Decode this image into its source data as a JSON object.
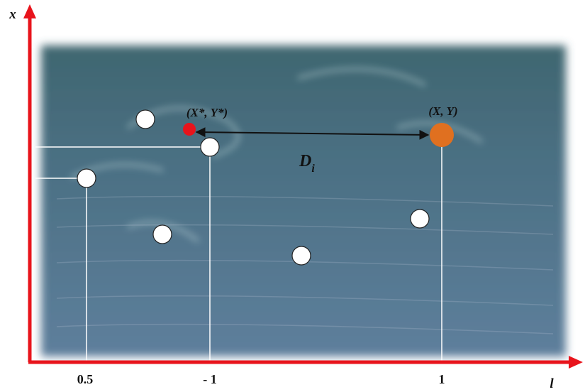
{
  "axes": {
    "vertical_label": "x",
    "horizontal_label": "l",
    "tick_labels": [
      "0.5",
      "- 1",
      "1"
    ]
  },
  "points": {
    "best": "(X*, Y*)",
    "current": "(X, Y)"
  },
  "distance": {
    "symbol": "D",
    "subscript": "i"
  }
}
